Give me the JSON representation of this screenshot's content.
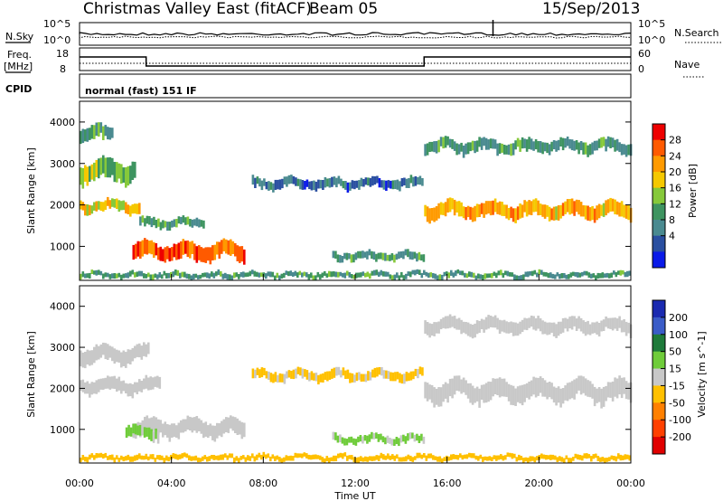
{
  "header": {
    "title": "Christmas Valley East (fitACF)",
    "beam": "Beam 05",
    "date": "15/Sep/2013"
  },
  "param_panels": {
    "nsky_label": "N.Sky",
    "nsky_ticks": [
      "10^5",
      "10^0"
    ],
    "nsearch_label": "N.Search",
    "nsearch_ticks": [
      "10^5",
      "10^0"
    ],
    "freq_label_line1": "Freq.",
    "freq_label_line2": "[MHz]",
    "freq_ticks": [
      "18",
      "8"
    ],
    "nave_label": "Nave",
    "nave_ticks": [
      "60",
      "0"
    ],
    "cpid_label": "CPID",
    "cpid_value": "normal (fast) 151 IF"
  },
  "power_panel": {
    "ylabel": "Slant Range [km]",
    "yticks": [
      "4000",
      "3000",
      "2000",
      "1000"
    ],
    "cbar_label": "Power [dB]",
    "cbar_ticks": [
      "28",
      "24",
      "20",
      "16",
      "12",
      "8",
      "4"
    ],
    "cbar_colors": [
      "#ee0000",
      "#ff5a00",
      "#ff9a00",
      "#f5c800",
      "#86c93a",
      "#3e9460",
      "#4a8a90",
      "#2a4fa0",
      "#0a1ae8"
    ]
  },
  "velocity_panel": {
    "ylabel": "Slant Range [km]",
    "yticks": [
      "4000",
      "3000",
      "2000",
      "1000"
    ],
    "cbar_label": "Velocity [m s^-1]",
    "cbar_ticks": [
      "200",
      "100",
      "50",
      "15",
      "-15",
      "-50",
      "-100",
      "-200"
    ],
    "cbar_colors": [
      "#1a2ab0",
      "#3a5cc8",
      "#1e7a3a",
      "#6fcc3a",
      "#c8c8c8",
      "#ffc000",
      "#ff8000",
      "#ff4000",
      "#e00000"
    ]
  },
  "xaxis": {
    "label": "Time UT",
    "ticks": [
      "00:00",
      "04:00",
      "08:00",
      "12:00",
      "16:00",
      "20:00",
      "00:00"
    ]
  },
  "chart_data": [
    {
      "type": "heatmap",
      "name_hint": "power",
      "x_range_hours": [
        0,
        24
      ],
      "y_range_km": [
        180,
        4500
      ],
      "bands": [
        {
          "t0": 0.0,
          "t1": 2.7,
          "r_center": 1950,
          "width": 280,
          "level": 20
        },
        {
          "t0": 0.0,
          "t1": 2.5,
          "r_center": 2800,
          "width": 500,
          "level": 16
        },
        {
          "t0": 0.0,
          "t1": 1.5,
          "r_center": 3700,
          "width": 350,
          "level": 12
        },
        {
          "t0": 2.3,
          "t1": 7.2,
          "r_center": 850,
          "width": 420,
          "level": 26
        },
        {
          "t0": 2.6,
          "t1": 5.5,
          "r_center": 1550,
          "width": 220,
          "level": 12
        },
        {
          "t0": 7.5,
          "t1": 15.0,
          "r_center": 2500,
          "width": 250,
          "level": 8
        },
        {
          "t0": 11.0,
          "t1": 15.0,
          "r_center": 750,
          "width": 200,
          "level": 12
        },
        {
          "t0": 15.0,
          "t1": 24.0,
          "r_center": 1850,
          "width": 380,
          "level": 22
        },
        {
          "t0": 15.0,
          "t1": 24.0,
          "r_center": 3400,
          "width": 300,
          "level": 12
        },
        {
          "t0": 0.0,
          "t1": 24.0,
          "r_center": 300,
          "width": 140,
          "level": 12
        }
      ]
    },
    {
      "type": "heatmap",
      "name_hint": "velocity",
      "x_range_hours": [
        0,
        24
      ],
      "y_range_km": [
        180,
        4500
      ],
      "bands": [
        {
          "t0": 0.0,
          "t1": 3.5,
          "r_center": 2050,
          "width": 350,
          "value": 0
        },
        {
          "t0": 0.0,
          "t1": 3.0,
          "r_center": 2800,
          "width": 400,
          "value": 0
        },
        {
          "t0": 2.3,
          "t1": 7.2,
          "r_center": 1000,
          "width": 420,
          "value": 0
        },
        {
          "t0": 2.0,
          "t1": 3.5,
          "r_center": 900,
          "width": 300,
          "value": 40
        },
        {
          "t0": 7.5,
          "t1": 15.0,
          "r_center": 2300,
          "width": 250,
          "value": -20
        },
        {
          "t0": 11.0,
          "t1": 15.0,
          "r_center": 750,
          "width": 200,
          "value": 40
        },
        {
          "t0": 15.0,
          "t1": 24.0,
          "r_center": 1900,
          "width": 500,
          "value": 0
        },
        {
          "t0": 15.0,
          "t1": 24.0,
          "r_center": 3500,
          "width": 350,
          "value": 0
        },
        {
          "t0": 0.0,
          "t1": 24.0,
          "r_center": 300,
          "width": 140,
          "value": -30
        }
      ]
    }
  ]
}
